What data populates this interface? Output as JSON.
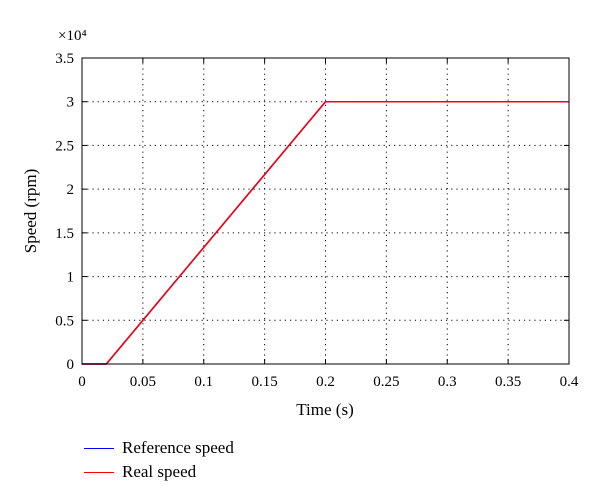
{
  "chart_data": {
    "type": "line",
    "xlabel": "Time (s)",
    "ylabel": "Speed (rpm)",
    "y_multiplier": "×10⁴",
    "xlim": [
      0,
      0.4
    ],
    "ylim": [
      0,
      35000
    ],
    "x_ticks": [
      0,
      0.05,
      0.1,
      0.15,
      0.2,
      0.25,
      0.3,
      0.35,
      0.4
    ],
    "x_tick_labels": [
      "0",
      "0.05",
      "0.1",
      "0.15",
      "0.2",
      "0.25",
      "0.3",
      "0.35",
      "0.4"
    ],
    "y_ticks": [
      0,
      5000,
      10000,
      15000,
      20000,
      25000,
      30000,
      35000
    ],
    "y_tick_labels": [
      "0",
      "0.5",
      "1",
      "1.5",
      "2",
      "2.5",
      "3",
      "3.5"
    ],
    "grid": true,
    "legend_position": "below",
    "series": [
      {
        "name": "Reference speed",
        "color": "#0000ff",
        "x": [
          0,
          0.02,
          0.2,
          0.4
        ],
        "y": [
          0,
          0,
          30000,
          30000
        ]
      },
      {
        "name": "Real speed",
        "color": "#ff0000",
        "x": [
          0,
          0.02,
          0.2,
          0.4
        ],
        "y": [
          0,
          0,
          30000,
          30000
        ]
      }
    ]
  }
}
